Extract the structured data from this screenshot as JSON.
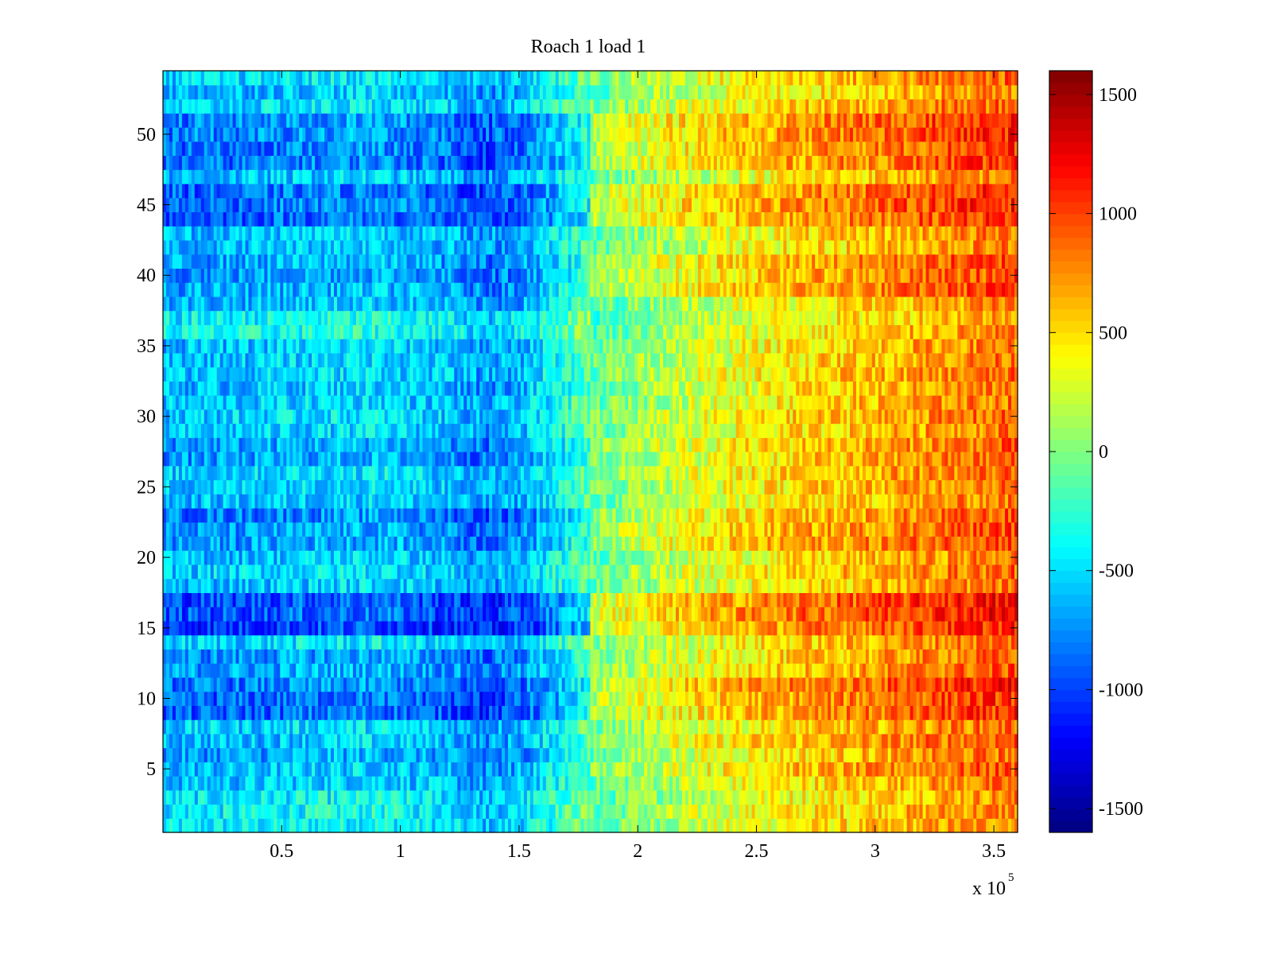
{
  "chart_data": {
    "type": "heatmap",
    "title": "Roach 1 load 1",
    "xlabel": "",
    "ylabel": "",
    "x_multiplier": "x 10",
    "x_multiplier_exponent": "5",
    "xlim": [
      0,
      360000
    ],
    "ylim": [
      0.5,
      54.5
    ],
    "x_ticks": [
      50000,
      100000,
      150000,
      200000,
      250000,
      300000,
      350000
    ],
    "x_tick_labels": [
      "0.5",
      "1",
      "1.5",
      "2",
      "2.5",
      "3",
      "3.5"
    ],
    "y_ticks": [
      5,
      10,
      15,
      20,
      25,
      30,
      35,
      40,
      45,
      50
    ],
    "y_tick_labels": [
      "5",
      "10",
      "15",
      "20",
      "25",
      "30",
      "35",
      "40",
      "45",
      "50"
    ],
    "colorbar": {
      "colormap": "jet",
      "clim": [
        -1600,
        1600
      ],
      "ticks": [
        -1500,
        -1000,
        -500,
        0,
        500,
        1000,
        1500
      ],
      "tick_labels": [
        "-1500",
        "-1000",
        "-500",
        "0",
        "500",
        "1000",
        "1500"
      ]
    },
    "rows": 54,
    "value_profile_x": [
      0,
      30000,
      60000,
      90000,
      120000,
      135000,
      150000,
      165000,
      180000,
      210000,
      240000,
      270000,
      300000,
      330000,
      360000
    ],
    "value_profile": [
      -600,
      -580,
      -520,
      -480,
      -600,
      -720,
      -620,
      -380,
      -100,
      150,
      350,
      500,
      600,
      750,
      850
    ],
    "row_offsets": [
      {
        "rows": [
          1,
          2,
          3
        ],
        "offset": 100
      },
      {
        "rows": [
          5,
          6,
          7
        ],
        "offset": -80
      },
      {
        "rows": [
          9,
          10,
          11
        ],
        "offset": -300
      },
      {
        "rows": [
          12,
          13
        ],
        "offset": -120
      },
      {
        "rows": [
          15,
          16,
          17
        ],
        "offset": -400
      },
      {
        "rows": [
          21,
          22,
          23
        ],
        "offset": -180
      },
      {
        "rows": [
          27,
          28
        ],
        "offset": -100
      },
      {
        "rows": [
          36,
          37
        ],
        "offset": 150
      },
      {
        "rows": [
          39,
          40,
          41
        ],
        "offset": -150
      },
      {
        "rows": [
          44,
          45,
          46
        ],
        "offset": -300
      },
      {
        "rows": [
          48,
          49,
          50,
          51
        ],
        "offset": -260
      }
    ]
  }
}
